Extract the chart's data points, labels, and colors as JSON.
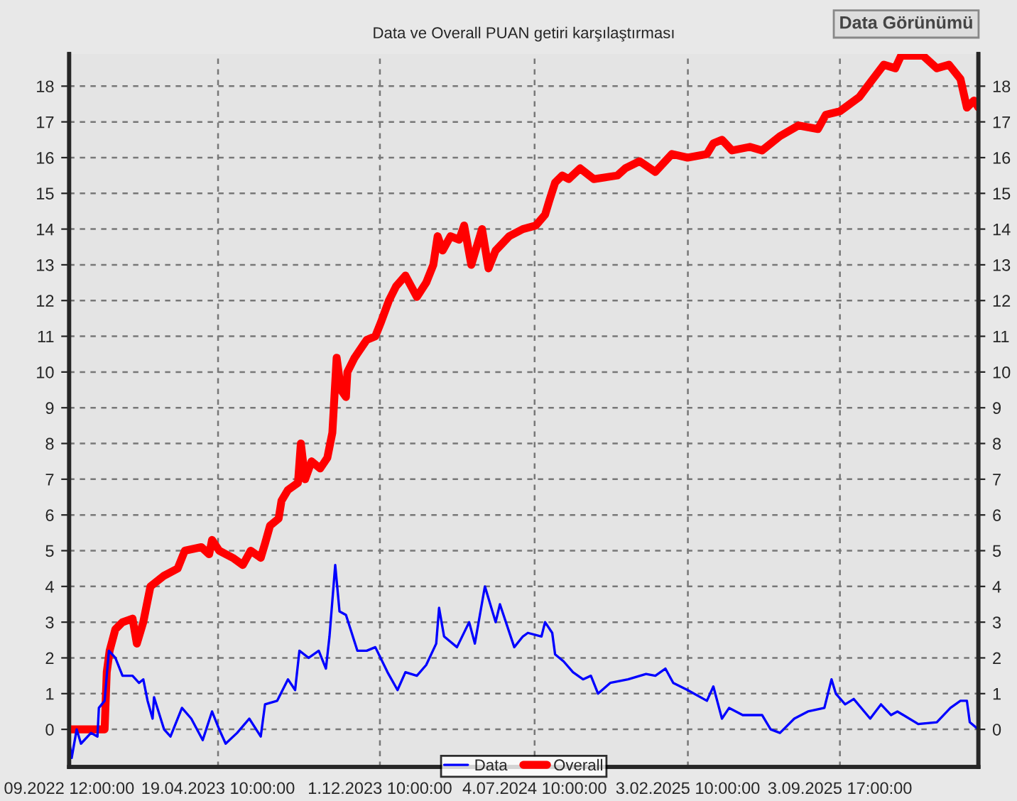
{
  "chart_data": {
    "type": "line",
    "title": "Data ve Overall PUAN getiri karşılaştırması",
    "annotations": [
      "Data Görünümü"
    ],
    "xlim": [
      "2022-09-23T12:00",
      "2026-03-16"
    ],
    "xticks": [
      {
        "value": "2022-09-23T12:00",
        "label": "09.2022 12:00:00"
      },
      {
        "value": "2023-04-19T10:00",
        "label": "19.04.2023 10:00:00"
      },
      {
        "value": "2023-12-01T10:00",
        "label": "1.12.2023 10:00:00"
      },
      {
        "value": "2024-07-04T10:00",
        "label": "4.07.2024 10:00:00"
      },
      {
        "value": "2025-02-03T10:00",
        "label": "3.02.2025 10:00:00"
      },
      {
        "value": "2025-09-03T17:00",
        "label": "3.09.2025 17:00:00"
      }
    ],
    "ylim": [
      -1.05,
      18.9
    ],
    "yticks": [
      0,
      1,
      2,
      3,
      4,
      5,
      6,
      7,
      8,
      9,
      10,
      11,
      12,
      13,
      14,
      15,
      16,
      17,
      18
    ],
    "y2lim": [
      -1.05,
      18.9
    ],
    "y2ticks": [
      0,
      1,
      2,
      3,
      4,
      5,
      6,
      7,
      8,
      9,
      10,
      11,
      12,
      13,
      14,
      15,
      16,
      17,
      18
    ],
    "grid": true,
    "legend": "bottom",
    "line_style": "solid",
    "marker": "none",
    "series": [
      {
        "name": "Data",
        "color": "#0000ff",
        "x": [
          "2022-09-23T12:00",
          "2022-09-27",
          "2022-10-04",
          "2022-10-10",
          "2022-10-24",
          "2022-11-02",
          "2022-11-04",
          "2022-11-12",
          "2022-11-18",
          "2022-11-27",
          "2022-12-07",
          "2022-12-21",
          "2022-12-30",
          "2023-01-05",
          "2023-01-11",
          "2023-01-18",
          "2023-01-20",
          "2023-02-03",
          "2023-02-12",
          "2023-02-28",
          "2023-03-13",
          "2023-03-29",
          "2023-04-11",
          "2023-04-21",
          "2023-04-30",
          "2023-05-16",
          "2023-06-02",
          "2023-06-18",
          "2023-06-24",
          "2023-07-11",
          "2023-07-26",
          "2023-08-05",
          "2023-08-11",
          "2023-08-24",
          "2023-09-07",
          "2023-09-17",
          "2023-09-22",
          "2023-09-30",
          "2023-10-06",
          "2023-10-15",
          "2023-10-31",
          "2023-11-13",
          "2023-11-25",
          "2023-12-12",
          "2023-12-26",
          "2024-01-06",
          "2024-01-22",
          "2024-02-04",
          "2024-02-18",
          "2024-02-22",
          "2024-02-29",
          "2024-03-18",
          "2024-04-04",
          "2024-04-12",
          "2024-04-26",
          "2024-05-11",
          "2024-05-17",
          "2024-06-06",
          "2024-06-18",
          "2024-06-25",
          "2024-07-14",
          "2024-07-19",
          "2024-07-29",
          "2024-08-02",
          "2024-08-14",
          "2024-08-27",
          "2024-09-10",
          "2024-09-21",
          "2024-10-01",
          "2024-10-18",
          "2024-11-12",
          "2024-12-07",
          "2024-12-20",
          "2025-01-03",
          "2025-01-14",
          "2025-02-03",
          "2025-03-02",
          "2025-03-11",
          "2025-03-23",
          "2025-04-02",
          "2025-04-21",
          "2025-05-18",
          "2025-05-30",
          "2025-06-12",
          "2025-07-02",
          "2025-07-21",
          "2025-08-13",
          "2025-08-23",
          "2025-08-29",
          "2025-09-11",
          "2025-09-23",
          "2025-10-16",
          "2025-10-31",
          "2025-11-14",
          "2025-11-23",
          "2025-12-22",
          "2026-01-17",
          "2026-02-05",
          "2026-02-19",
          "2026-02-28",
          "2026-03-04",
          "2026-03-16"
        ],
        "values": [
          -0.3,
          -0.8,
          0.0,
          -0.4,
          -0.1,
          -0.2,
          0.6,
          0.8,
          2.2,
          2.0,
          1.5,
          1.5,
          1.3,
          1.4,
          0.8,
          0.3,
          0.9,
          0.0,
          -0.2,
          0.6,
          0.3,
          -0.3,
          0.5,
          0.0,
          -0.4,
          -0.1,
          0.3,
          -0.2,
          0.7,
          0.8,
          1.4,
          1.1,
          2.2,
          2.0,
          2.2,
          1.7,
          2.6,
          4.6,
          3.3,
          3.2,
          2.2,
          2.2,
          2.3,
          1.6,
          1.1,
          1.6,
          1.5,
          1.8,
          2.4,
          3.4,
          2.6,
          2.3,
          3.0,
          2.4,
          4.0,
          3.0,
          3.5,
          2.3,
          2.6,
          2.7,
          2.6,
          3.0,
          2.7,
          2.1,
          1.9,
          1.6,
          1.4,
          1.5,
          1.0,
          1.3,
          1.4,
          1.55,
          1.5,
          1.7,
          1.3,
          1.1,
          0.8,
          1.2,
          0.3,
          0.6,
          0.4,
          0.4,
          0.0,
          -0.1,
          0.3,
          0.5,
          0.6,
          1.4,
          1.0,
          0.7,
          0.85,
          0.3,
          0.7,
          0.4,
          0.5,
          0.15,
          0.2,
          0.6,
          0.8,
          0.8,
          0.2,
          0.0
        ]
      },
      {
        "name": "Overall",
        "color": "#ff0000",
        "x": [
          "2022-09-23T12:00",
          "2022-11-12",
          "2022-11-15",
          "2022-11-19",
          "2022-11-27",
          "2022-12-07",
          "2022-12-21",
          "2022-12-27",
          "2023-01-05",
          "2023-01-15",
          "2023-02-03",
          "2023-02-22",
          "2023-03-04",
          "2023-03-27",
          "2023-04-07",
          "2023-04-11",
          "2023-04-21",
          "2023-05-10",
          "2023-05-24",
          "2023-06-04",
          "2023-06-18",
          "2023-06-24",
          "2023-07-01",
          "2023-07-13",
          "2023-07-17",
          "2023-07-26",
          "2023-08-09",
          "2023-08-13",
          "2023-08-19",
          "2023-08-28",
          "2023-09-09",
          "2023-09-19",
          "2023-09-26",
          "2023-09-28",
          "2023-10-02",
          "2023-10-08",
          "2023-10-15",
          "2023-10-17",
          "2023-10-27",
          "2023-11-13",
          "2023-11-25",
          "2023-12-03",
          "2023-12-14",
          "2023-12-24",
          "2024-01-06",
          "2024-01-22",
          "2024-02-04",
          "2024-02-14",
          "2024-02-20",
          "2024-02-27",
          "2024-03-09",
          "2024-03-21",
          "2024-03-28",
          "2024-04-07",
          "2024-04-22",
          "2024-05-01",
          "2024-05-11",
          "2024-05-30",
          "2024-06-18",
          "2024-07-06",
          "2024-07-19",
          "2024-07-25",
          "2024-08-02",
          "2024-08-12",
          "2024-08-21",
          "2024-09-06",
          "2024-09-25",
          "2024-10-28",
          "2024-11-08",
          "2024-11-28",
          "2024-12-20",
          "2025-01-12",
          "2025-02-03",
          "2025-03-02",
          "2025-03-11",
          "2025-03-23",
          "2025-04-06",
          "2025-05-01",
          "2025-05-18",
          "2025-06-12",
          "2025-07-08",
          "2025-08-04",
          "2025-08-15",
          "2025-09-04",
          "2025-10-01",
          "2025-10-16",
          "2025-11-04",
          "2025-11-20",
          "2025-11-28",
          "2025-12-29",
          "2026-01-17",
          "2026-02-03",
          "2026-02-19",
          "2026-02-28",
          "2026-03-10",
          "2026-03-16"
        ],
        "values": [
          0.0,
          0.0,
          1.6,
          2.2,
          2.8,
          3.0,
          3.1,
          2.4,
          3.0,
          4.0,
          4.3,
          4.5,
          5.0,
          5.1,
          4.9,
          5.3,
          5.0,
          4.8,
          4.6,
          5.0,
          4.8,
          5.2,
          5.7,
          5.9,
          6.4,
          6.7,
          6.9,
          8.0,
          7.0,
          7.5,
          7.3,
          7.6,
          8.3,
          9.0,
          10.4,
          9.5,
          9.3,
          10.0,
          10.4,
          10.9,
          11.0,
          11.4,
          12.0,
          12.4,
          12.7,
          12.1,
          12.5,
          13.0,
          13.8,
          13.4,
          13.8,
          13.7,
          14.1,
          13.0,
          14.0,
          12.9,
          13.4,
          13.8,
          14.0,
          14.1,
          14.4,
          14.8,
          15.3,
          15.5,
          15.4,
          15.7,
          15.4,
          15.5,
          15.7,
          15.9,
          15.6,
          16.1,
          16.0,
          16.1,
          16.4,
          16.5,
          16.2,
          16.3,
          16.2,
          16.6,
          16.9,
          16.8,
          17.2,
          17.3,
          17.7,
          18.1,
          18.6,
          18.5,
          18.85,
          18.85,
          18.5,
          18.6,
          18.2,
          17.4,
          17.6,
          17.4
        ]
      }
    ]
  }
}
